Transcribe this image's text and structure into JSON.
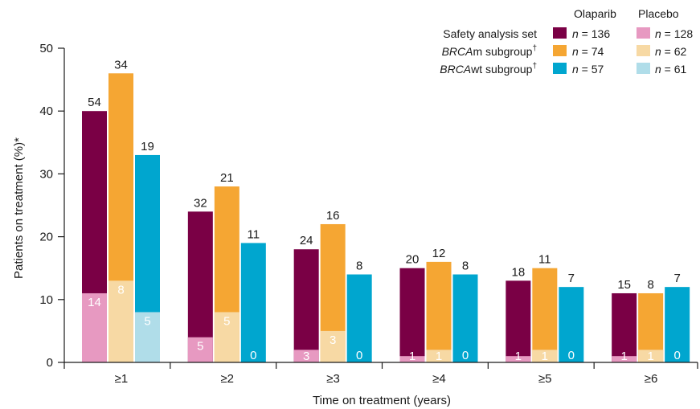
{
  "chart_data": {
    "type": "bar",
    "xlabel": "Time on treatment (years)",
    "ylabel": "Patients on treatment (%)*",
    "ylim": [
      0,
      50
    ],
    "yticks": [
      0,
      10,
      20,
      30,
      40,
      50
    ],
    "categories": [
      "≥1",
      "≥2",
      "≥3",
      "≥4",
      "≥5",
      "≥6"
    ],
    "grid": false,
    "legend_position": "top-right",
    "legend": {
      "group_headers": [
        "Olaparib",
        "Placebo"
      ],
      "rows": [
        {
          "label": "Safety analysis set",
          "olaparib_n": "n = 136",
          "placebo_n": "n = 128"
        },
        {
          "label_italic": "BRCA",
          "label_rest": "m subgroup",
          "label_sup": "†",
          "olaparib_n": "n = 74",
          "placebo_n": "n = 62"
        },
        {
          "label_italic": "BRCA",
          "label_rest": "wt subgroup",
          "label_sup": "†",
          "olaparib_n": "n = 57",
          "placebo_n": "n = 61"
        }
      ]
    },
    "series": [
      {
        "group": "Safety analysis set",
        "arm": "Olaparib",
        "color": "#7a0045",
        "values": [
          40,
          24,
          18,
          15,
          13,
          11
        ],
        "counts": [
          54,
          32,
          24,
          20,
          18,
          15
        ]
      },
      {
        "group": "BRCAm subgroup",
        "arm": "Olaparib",
        "color": "#f5a633",
        "values": [
          46,
          28,
          22,
          16,
          15,
          11
        ],
        "counts": [
          34,
          21,
          16,
          12,
          11,
          8
        ]
      },
      {
        "group": "BRCAwt subgroup",
        "arm": "Olaparib",
        "color": "#00a6cf",
        "values": [
          33,
          19,
          14,
          14,
          12,
          12
        ],
        "counts": [
          19,
          11,
          8,
          8,
          7,
          7
        ]
      },
      {
        "group": "Safety analysis set",
        "arm": "Placebo",
        "color": "#e799c1",
        "values": [
          11,
          4,
          2,
          1,
          1,
          1
        ],
        "counts": [
          14,
          5,
          3,
          1,
          1,
          1
        ]
      },
      {
        "group": "BRCAm subgroup",
        "arm": "Placebo",
        "color": "#f7d9a4",
        "values": [
          13,
          8,
          5,
          2,
          2,
          2
        ],
        "counts": [
          8,
          5,
          3,
          1,
          1,
          1
        ]
      },
      {
        "group": "BRCAwt subgroup",
        "arm": "Placebo",
        "color": "#b0dde9",
        "values": [
          8,
          0,
          0,
          0,
          0,
          0
        ],
        "counts": [
          5,
          0,
          0,
          0,
          0,
          0
        ]
      }
    ]
  }
}
